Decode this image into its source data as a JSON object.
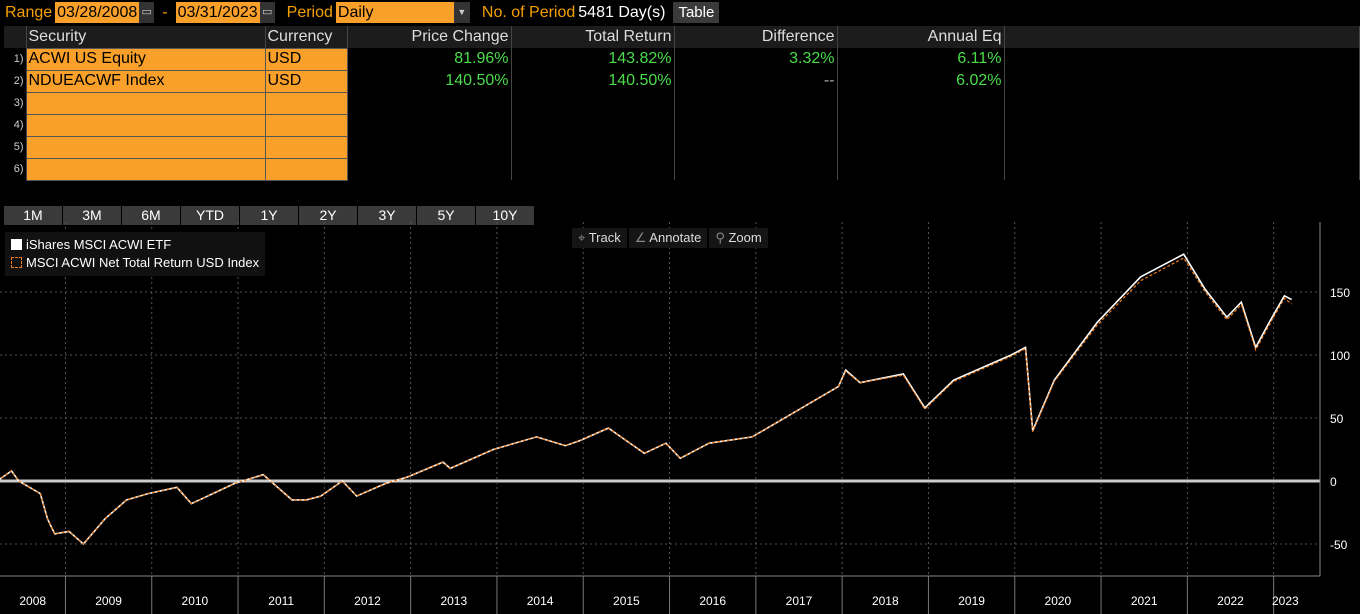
{
  "header": {
    "range_label": "Range",
    "start_date": "03/28/2008",
    "dash": "-",
    "end_date": "03/31/2023",
    "period_label": "Period",
    "period_value": "Daily",
    "nperiod_label": "No. of Period",
    "nperiod_value": "5481 Day(s)",
    "table_button": "Table"
  },
  "table": {
    "columns": [
      "Security",
      "Currency",
      "Price Change",
      "Total Return",
      "Difference",
      "Annual Eq"
    ],
    "rows": [
      {
        "num": "1)",
        "security": "ACWI US Equity",
        "currency": "USD",
        "price_change": "81.96%",
        "total_return": "143.82%",
        "difference": "3.32%",
        "annual_eq": "6.11%"
      },
      {
        "num": "2)",
        "security": "NDUEACWF Index",
        "currency": "USD",
        "price_change": "140.50%",
        "total_return": "140.50%",
        "difference": "--",
        "annual_eq": "6.02%"
      },
      {
        "num": "3)"
      },
      {
        "num": "4)"
      },
      {
        "num": "5)"
      },
      {
        "num": "6)"
      }
    ]
  },
  "periods": [
    "1M",
    "3M",
    "6M",
    "YTD",
    "1Y",
    "2Y",
    "3Y",
    "5Y",
    "10Y"
  ],
  "tools": {
    "track": "Track",
    "annotate": "Annotate",
    "zoom": "Zoom"
  },
  "colors": {
    "accent": "#f9a02a",
    "positive": "#4bdc4b",
    "series1": "#ffffff",
    "series2": "#f07c1a"
  },
  "chart_data": {
    "type": "line",
    "legend_position": "top-left",
    "grid": true,
    "ylim": [
      -75,
      200
    ],
    "yticks": [
      -50,
      0,
      50,
      100,
      150
    ],
    "xticks": [
      "2008",
      "2009",
      "2010",
      "2011",
      "2012",
      "2013",
      "2014",
      "2015",
      "2016",
      "2017",
      "2018",
      "2019",
      "2020",
      "2021",
      "2022",
      "2023"
    ],
    "x": [
      "2008-03",
      "2008-05",
      "2008-06",
      "2008-09",
      "2008-10",
      "2008-11",
      "2009-01",
      "2009-03",
      "2009-06",
      "2009-09",
      "2009-12",
      "2010-04",
      "2010-06",
      "2010-09",
      "2010-12",
      "2011-04",
      "2011-08",
      "2011-10",
      "2011-12",
      "2012-03",
      "2012-05",
      "2012-09",
      "2012-12",
      "2013-05",
      "2013-06",
      "2013-12",
      "2014-06",
      "2014-10",
      "2014-12",
      "2015-04",
      "2015-09",
      "2015-12",
      "2016-02",
      "2016-06",
      "2016-12",
      "2017-06",
      "2017-12",
      "2018-01",
      "2018-03",
      "2018-09",
      "2018-12",
      "2019-04",
      "2019-12",
      "2020-02",
      "2020-03",
      "2020-06",
      "2020-12",
      "2021-06",
      "2021-12",
      "2022-03",
      "2022-06",
      "2022-08",
      "2022-10",
      "2022-12",
      "2023-02",
      "2023-03"
    ],
    "series": [
      {
        "name": "iShares MSCI ACWI ETF",
        "values": [
          0,
          8,
          0,
          -10,
          -30,
          -42,
          -40,
          -50,
          -30,
          -15,
          -10,
          -5,
          -18,
          -10,
          -2,
          5,
          -15,
          -15,
          -12,
          0,
          -12,
          -2,
          3,
          15,
          10,
          25,
          35,
          28,
          32,
          42,
          22,
          30,
          18,
          30,
          35,
          55,
          75,
          88,
          78,
          85,
          58,
          80,
          100,
          106,
          40,
          80,
          126,
          162,
          180,
          152,
          130,
          142,
          106,
          127,
          147,
          144
        ]
      },
      {
        "name": "MSCI ACWI Net Total Return USD Index",
        "values": [
          0,
          8,
          0,
          -10,
          -30,
          -42,
          -40,
          -50,
          -30,
          -15,
          -10,
          -5,
          -18,
          -10,
          -2,
          5,
          -15,
          -15,
          -12,
          0,
          -12,
          -2,
          3,
          15,
          10,
          25,
          35,
          28,
          32,
          42,
          22,
          30,
          18,
          30,
          35,
          55,
          75,
          87,
          78,
          84,
          57,
          79,
          99,
          105,
          39,
          79,
          124,
          159,
          177,
          150,
          128,
          140,
          104,
          125,
          145,
          140.5
        ]
      }
    ]
  }
}
